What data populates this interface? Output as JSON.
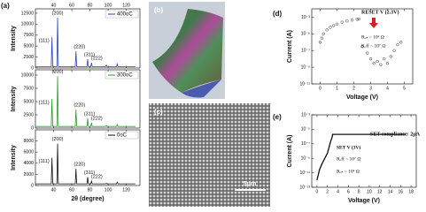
{
  "panel_labels": [
    "(a)",
    "(b)",
    "(c)",
    "(d)",
    "(e)"
  ],
  "scale_bar": "5μm",
  "chart_data": [
    {
      "type": "line",
      "ylabel": "Intensity",
      "xlim": [
        20,
        135
      ],
      "xticks": [
        40,
        60,
        80,
        100,
        120
      ],
      "ylim": [
        0,
        13500
      ],
      "yticks": [
        0,
        2500,
        5000,
        7500,
        10000,
        12500
      ],
      "x": [
        20,
        37.4,
        38.2,
        39,
        43.6,
        44.4,
        45.2,
        63.8,
        64.6,
        65.4,
        76.7,
        77.5,
        78.3,
        80.9,
        81.7,
        82.5,
        97.2,
        98,
        98.8,
        109.2,
        110,
        110.8,
        130
      ],
      "series": [
        {
          "name": "400oC",
          "color": "#2b3fc4",
          "values": [
            300,
            300,
            7000,
            300,
            300,
            11500,
            300,
            300,
            3800,
            300,
            300,
            2000,
            300,
            300,
            1200,
            300,
            300,
            700,
            300,
            300,
            900,
            300,
            300
          ]
        }
      ],
      "annotations": [
        "(111)",
        "(200)",
        "(220)",
        "(311)",
        "(222)"
      ],
      "legend": "upper right"
    },
    {
      "type": "line",
      "ylabel": "Intensity",
      "xlim": [
        20,
        135
      ],
      "xticks": [
        40,
        60,
        80,
        100,
        120
      ],
      "ylim": [
        0,
        11000
      ],
      "yticks": [
        0,
        2500,
        5000,
        7500,
        10000
      ],
      "x": [
        20,
        37.4,
        38.2,
        39,
        43.6,
        44.4,
        45.2,
        63.8,
        64.6,
        65.4,
        76.7,
        77.5,
        78.3,
        80.9,
        81.7,
        82.5,
        97.2,
        98,
        98.8,
        109.2,
        110,
        110.8,
        130
      ],
      "series": [
        {
          "name": "300oC",
          "color": "#2a9a2a",
          "values": [
            300,
            300,
            5500,
            300,
            300,
            9800,
            300,
            300,
            3500,
            300,
            300,
            1800,
            300,
            300,
            1000,
            300,
            300,
            500,
            300,
            300,
            700,
            300,
            300
          ]
        }
      ],
      "annotations": [
        "(111)",
        "(200)",
        "(220)",
        "(311)",
        "(222)"
      ],
      "legend": "upper right"
    },
    {
      "type": "line",
      "ylabel": "Intensity",
      "xlabel": "2θ (degree)",
      "xlim": [
        20,
        135
      ],
      "xticks": [
        40,
        60,
        80,
        100,
        120
      ],
      "ylim": [
        0,
        10000
      ],
      "yticks": [
        0,
        2000,
        4000,
        6000,
        8000
      ],
      "x": [
        20,
        37.4,
        38.2,
        39,
        43.6,
        44.4,
        45.2,
        63.8,
        64.6,
        65.4,
        76.7,
        77.5,
        78.3,
        80.9,
        81.7,
        82.5,
        97.2,
        98,
        98.8,
        109.2,
        110,
        110.8,
        130
      ],
      "series": [
        {
          "name": "0oC",
          "color": "#111111",
          "values": [
            300,
            300,
            5000,
            300,
            300,
            7500,
            300,
            300,
            3000,
            300,
            300,
            1500,
            300,
            300,
            800,
            300,
            300,
            400,
            300,
            300,
            600,
            300,
            300
          ]
        }
      ],
      "annotations": [
        "(111)",
        "(200)",
        "(220)",
        "(311)",
        "(222)"
      ],
      "legend": "upper right"
    },
    {
      "type": "scatter",
      "xlabel": "Voltage (V)",
      "ylabel": "Current (A)",
      "log_y": true,
      "xlim": [
        -0.5,
        5.5
      ],
      "xticks": [
        0,
        1,
        2,
        3,
        4,
        5
      ],
      "ylim": [
        1e-11,
        0.01
      ],
      "yticks": [
        {
          "value": 0.001,
          "label": "10⁻³"
        },
        {
          "value": 1e-05,
          "label": "10⁻⁵"
        },
        {
          "value": 1e-07,
          "label": "10⁻⁷"
        },
        {
          "value": 1e-09,
          "label": "10⁻⁹"
        },
        {
          "value": 1e-11,
          "label": "10⁻¹¹"
        }
      ],
      "x": [
        0,
        0.1,
        0.2,
        0.4,
        0.6,
        0.8,
        1.0,
        1.3,
        1.6,
        1.9,
        2.2,
        2.3,
        2.5,
        2.8,
        3.0,
        3.2,
        3.4,
        3.6,
        3.8,
        4.0,
        4.2,
        4.4,
        4.6,
        4.8
      ],
      "series": [
        {
          "color": "#333333",
          "values": [
            1e-06,
            3e-06,
            1e-05,
            3e-05,
            6e-05,
            0.0001,
            0.00015,
            0.00025,
            0.00035,
            0.00045,
            0.00055,
            0.0006,
            3e-07,
            5e-08,
            1e-08,
            3e-09,
            5e-09,
            2e-09,
            1e-08,
            3e-09,
            2e-08,
            1e-07,
            5e-07,
            1e-06
          ]
        }
      ],
      "annotations": [
        "RESET V (2.3V)",
        "Rₒₙ ~ 10² Ω",
        "Rₒff ~ 10⁷ Ω"
      ]
    },
    {
      "type": "line",
      "xlabel": "Voltage (V)",
      "ylabel": "Current (A)",
      "log_y": true,
      "xlim": [
        -1,
        19
      ],
      "xticks": [
        0,
        2,
        4,
        6,
        8,
        10,
        12,
        14,
        16,
        18
      ],
      "ylim": [
        1e-13,
        0.001
      ],
      "yticks": [
        {
          "value": 0.001,
          "label": "10⁻³"
        },
        {
          "value": 1e-05,
          "label": "10⁻⁵"
        },
        {
          "value": 1e-07,
          "label": "10⁻⁷"
        },
        {
          "value": 1e-09,
          "label": "10⁻⁹"
        },
        {
          "value": 1e-11,
          "label": "10⁻¹¹"
        },
        {
          "value": 1e-13,
          "label": "10⁻¹³"
        }
      ],
      "x": [
        0,
        0.5,
        1,
        1.5,
        2,
        2.3,
        2.6,
        2.9,
        3.0,
        3.2,
        3.5,
        5,
        8,
        11,
        14,
        17
      ],
      "series": [
        {
          "color": "#111111",
          "values": [
            1e-12,
            3e-11,
            2e-10,
            1e-09,
            5e-09,
            3e-08,
            2e-07,
            8e-07,
            2e-06,
            2e-06,
            2e-06,
            2e-06,
            2e-06,
            2e-06,
            2e-06,
            2e-06
          ]
        }
      ],
      "annotations": [
        "SET compliance: 2μA",
        "SET V (3V)",
        "Rₒff ~ 10⁷ Ω",
        "Rₒₙ ~ 10² Ω"
      ]
    }
  ]
}
